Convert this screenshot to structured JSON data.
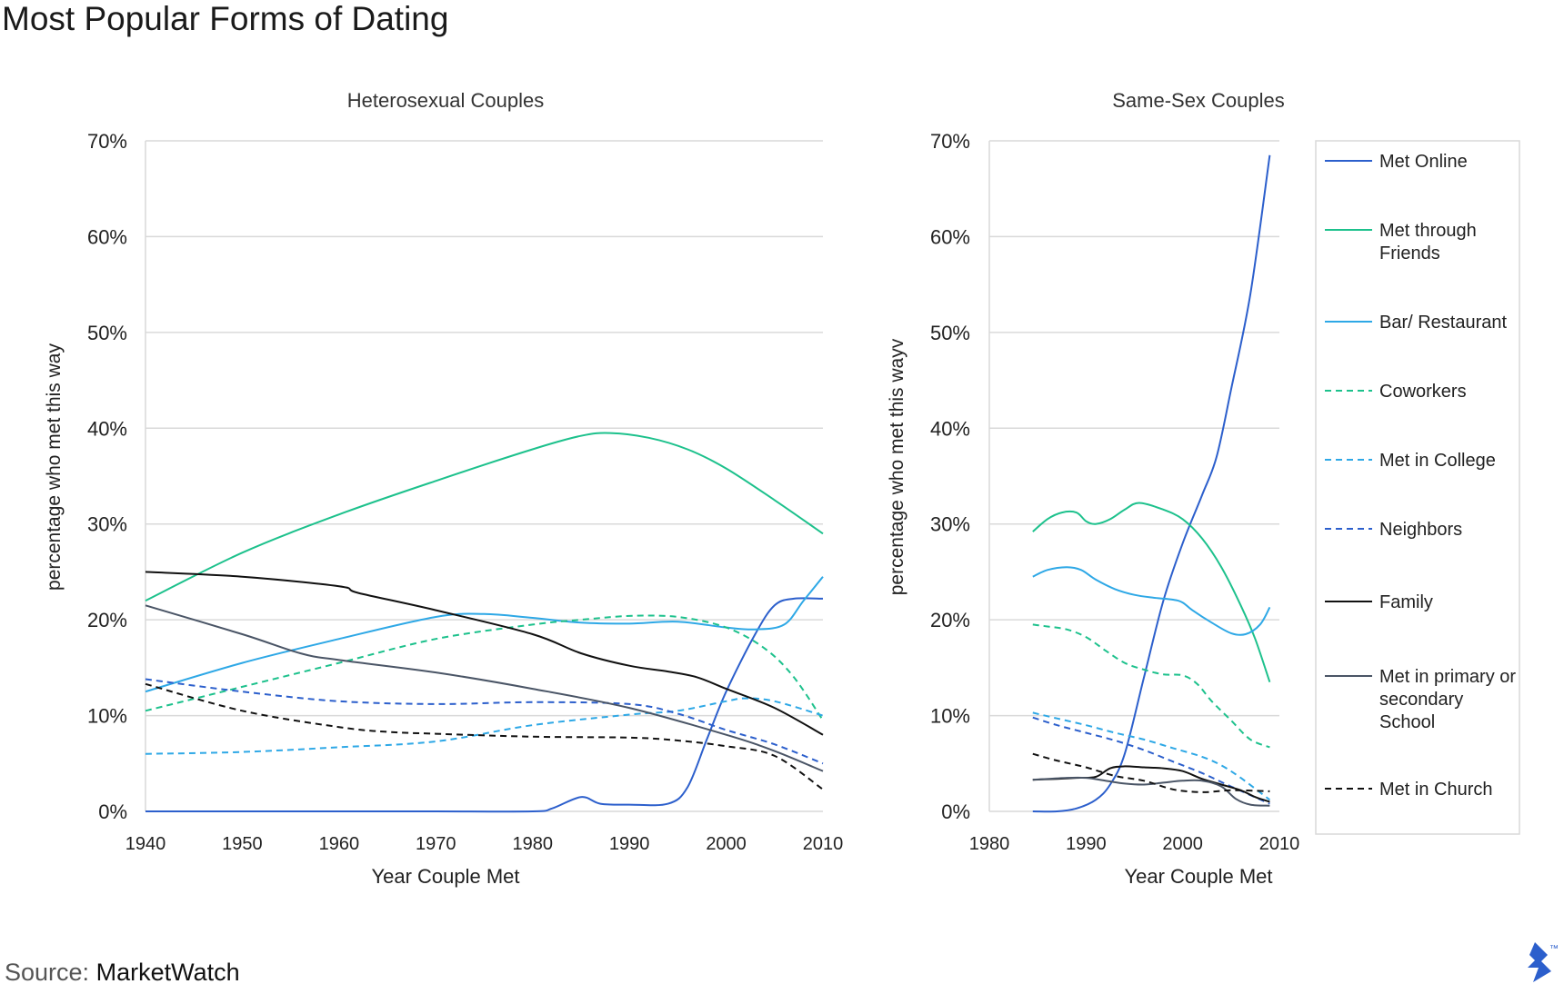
{
  "page": {
    "title": "Most Popular Forms of Dating",
    "source_label": "Source:",
    "source_name": "MarketWatch",
    "logo_icon": "toptal-logo-icon",
    "trademark": "™"
  },
  "colors": {
    "Met Online": "#2c5fcc",
    "Met through Friends": "#1dc18c",
    "Bar/ Restaurant": "#2ea8e6",
    "Coworkers": "#1dc18c",
    "Met in College": "#2ea8e6",
    "Neighbors": "#2c5fcc",
    "Family": "#111111",
    "Met in primary or secondary School": "#4a5566",
    "Met in Church": "#111111"
  },
  "legend": [
    {
      "name": "Met Online",
      "label_lines": [
        "Met Online"
      ],
      "dashed": false
    },
    {
      "name": "Met through Friends",
      "label_lines": [
        "Met through",
        "Friends"
      ],
      "dashed": false
    },
    {
      "name": "Bar/ Restaurant",
      "label_lines": [
        "Bar/ Restaurant"
      ],
      "dashed": false
    },
    {
      "name": "Coworkers",
      "label_lines": [
        "Coworkers"
      ],
      "dashed": true
    },
    {
      "name": "Met in College",
      "label_lines": [
        "Met in College"
      ],
      "dashed": true
    },
    {
      "name": "Neighbors",
      "label_lines": [
        "Neighbors"
      ],
      "dashed": true
    },
    {
      "name": "Family",
      "label_lines": [
        "Family"
      ],
      "dashed": false
    },
    {
      "name": "Met in primary or secondary School",
      "label_lines": [
        "Met in primary or",
        "secondary",
        "School"
      ],
      "dashed": false
    },
    {
      "name": "Met in Church",
      "label_lines": [
        "Met in Church"
      ],
      "dashed": true
    }
  ],
  "chart_data": [
    {
      "type": "line",
      "title": "Heterosexual Couples",
      "xlabel": "Year Couple Met",
      "ylabel": "percentage who met this way",
      "xlim": [
        1940,
        2010
      ],
      "ylim": [
        0,
        70
      ],
      "x_ticks": [
        "1940",
        "1950",
        "1960",
        "1970",
        "1980",
        "1990",
        "2000",
        "2010"
      ],
      "y_ticks": [
        "0%",
        "10%",
        "20%",
        "30%",
        "40%",
        "50%",
        "60%",
        "70%"
      ],
      "grid": true,
      "series": [
        {
          "name": "Met Online",
          "dashed": false,
          "x": [
            1940,
            1950,
            1960,
            1970,
            1980,
            1982,
            1985,
            1987,
            1990,
            1994,
            1996,
            1998,
            2000,
            2003,
            2005,
            2007,
            2010
          ],
          "y": [
            0,
            0,
            0,
            0,
            0,
            0.3,
            1.5,
            0.8,
            0.7,
            0.8,
            2.5,
            7.5,
            12.5,
            18.5,
            21.5,
            22.2,
            22.2
          ]
        },
        {
          "name": "Met through Friends",
          "dashed": false,
          "x": [
            1940,
            1950,
            1960,
            1970,
            1980,
            1985,
            1988,
            1992,
            1996,
            2000,
            2005,
            2010
          ],
          "y": [
            22,
            27,
            31,
            34.5,
            37.8,
            39.2,
            39.5,
            39,
            37.8,
            35.8,
            32.5,
            29
          ]
        },
        {
          "name": "Bar/ Restaurant",
          "dashed": false,
          "x": [
            1940,
            1950,
            1960,
            1970,
            1975,
            1980,
            1985,
            1990,
            1995,
            2000,
            2003,
            2006,
            2008,
            2010
          ],
          "y": [
            12.5,
            15.5,
            18,
            20.3,
            20.6,
            20.2,
            19.7,
            19.6,
            19.8,
            19.2,
            19,
            19.5,
            22,
            24.5
          ]
        },
        {
          "name": "Coworkers",
          "dashed": true,
          "x": [
            1940,
            1950,
            1960,
            1970,
            1980,
            1985,
            1990,
            1995,
            2000,
            2004,
            2007,
            2010
          ],
          "y": [
            10.5,
            13,
            15.5,
            18,
            19.5,
            20,
            20.4,
            20.3,
            19.2,
            17,
            14,
            9.5
          ]
        },
        {
          "name": "Met in College",
          "dashed": true,
          "x": [
            1940,
            1950,
            1960,
            1970,
            1980,
            1990,
            1995,
            2000,
            2002,
            2005,
            2010
          ],
          "y": [
            6,
            6.2,
            6.7,
            7.3,
            9,
            10.1,
            10.5,
            11.5,
            11.8,
            11.5,
            10
          ]
        },
        {
          "name": "Neighbors",
          "dashed": true,
          "x": [
            1940,
            1950,
            1960,
            1970,
            1980,
            1990,
            1995,
            2000,
            2005,
            2010
          ],
          "y": [
            13.8,
            12.5,
            11.5,
            11.2,
            11.4,
            11.2,
            10.2,
            8.5,
            7,
            5
          ]
        },
        {
          "name": "Family",
          "dashed": false,
          "x": [
            1940,
            1950,
            1960,
            1962,
            1970,
            1980,
            1985,
            1990,
            1994,
            1997,
            2000,
            2005,
            2010
          ],
          "y": [
            25,
            24.5,
            23.5,
            22.8,
            21,
            18.5,
            16.5,
            15.2,
            14.6,
            14,
            12.8,
            10.8,
            8
          ]
        },
        {
          "name": "Met in primary or secondary School",
          "dashed": false,
          "x": [
            1940,
            1950,
            1956,
            1960,
            1970,
            1980,
            1990,
            2000,
            2005,
            2010
          ],
          "y": [
            21.5,
            18.5,
            16.5,
            15.8,
            14.5,
            12.8,
            10.8,
            8,
            6.3,
            4.2
          ]
        },
        {
          "name": "Met in Church",
          "dashed": true,
          "x": [
            1940,
            1950,
            1960,
            1965,
            1970,
            1980,
            1990,
            1995,
            2000,
            2005,
            2010
          ],
          "y": [
            13.3,
            10.5,
            8.8,
            8.3,
            8.1,
            7.8,
            7.7,
            7.4,
            6.8,
            5.8,
            2.3
          ]
        }
      ]
    },
    {
      "type": "line",
      "title": "Same-Sex Couples",
      "xlabel": "Year Couple Met",
      "ylabel": "percentage who met this wayv",
      "xlim": [
        1980,
        2010
      ],
      "ylim": [
        0,
        70
      ],
      "x_ticks": [
        "1980",
        "1990",
        "2000",
        "2010"
      ],
      "y_ticks": [
        "0%",
        "10%",
        "20%",
        "30%",
        "40%",
        "50%",
        "60%",
        "70%"
      ],
      "grid": true,
      "series": [
        {
          "name": "Met Online",
          "dashed": false,
          "x": [
            1984.5,
            1987,
            1989,
            1991,
            1992.5,
            1994,
            1996,
            1998,
            2000,
            2002,
            2003.5,
            2005,
            2007,
            2009
          ],
          "y": [
            0,
            0,
            0.3,
            1.2,
            2.8,
            6,
            14,
            22,
            28,
            33,
            37,
            44,
            54,
            68.5
          ]
        },
        {
          "name": "Met through Friends",
          "dashed": false,
          "x": [
            1984.5,
            1986,
            1987.5,
            1989,
            1990,
            1991,
            1992.5,
            1994,
            1995.5,
            1998,
            2000,
            2002,
            2004,
            2006,
            2007.5,
            2009
          ],
          "y": [
            29.2,
            30.5,
            31.2,
            31.2,
            30.3,
            30,
            30.5,
            31.5,
            32.2,
            31.5,
            30.5,
            28.5,
            25.5,
            21.5,
            18,
            13.5
          ]
        },
        {
          "name": "Bar/ Restaurant",
          "dashed": false,
          "x": [
            1984.5,
            1986,
            1988,
            1989.5,
            1991,
            1993,
            1995,
            1997,
            1999,
            2000,
            2001,
            2003,
            2005,
            2006.5,
            2008,
            2009
          ],
          "y": [
            24.5,
            25.2,
            25.5,
            25.2,
            24.2,
            23.2,
            22.6,
            22.3,
            22.1,
            21.8,
            21,
            19.7,
            18.6,
            18.5,
            19.5,
            21.3
          ]
        },
        {
          "name": "Coworkers",
          "dashed": true,
          "x": [
            1984.5,
            1986,
            1988,
            1990,
            1992,
            1994,
            1996,
            1998,
            2000,
            2001.5,
            2003,
            2005,
            2007,
            2009
          ],
          "y": [
            19.5,
            19.3,
            19,
            18.2,
            16.8,
            15.5,
            14.8,
            14.3,
            14.2,
            13.3,
            11.5,
            9.5,
            7.5,
            6.7
          ]
        },
        {
          "name": "Met in College",
          "dashed": true,
          "x": [
            1984.5,
            1987,
            1990,
            1993,
            1996,
            1999,
            2002,
            2004,
            2006,
            2009
          ],
          "y": [
            10.3,
            9.7,
            9,
            8.2,
            7.5,
            6.6,
            5.7,
            4.8,
            3.5,
            1.2
          ]
        },
        {
          "name": "Neighbors",
          "dashed": true,
          "x": [
            1984.5,
            1987,
            1990,
            1993,
            1996,
            1999,
            2002,
            2005,
            2009
          ],
          "y": [
            9.8,
            9,
            8.2,
            7.4,
            6.4,
            5.2,
            4,
            2.6,
            0.8
          ]
        },
        {
          "name": "Family",
          "dashed": false,
          "x": [
            1984.5,
            1987,
            1989,
            1991,
            1992.5,
            1994,
            1996,
            1998,
            2000,
            2002,
            2004,
            2006,
            2007.5,
            2009
          ],
          "y": [
            3.3,
            3.4,
            3.5,
            3.6,
            4.5,
            4.7,
            4.6,
            4.5,
            4.2,
            3.4,
            2.8,
            2.2,
            1.5,
            1
          ]
        },
        {
          "name": "Met in primary or secondary School",
          "dashed": false,
          "x": [
            1984.5,
            1988,
            1990,
            1992,
            1994,
            1996,
            1998,
            2000,
            2002,
            2004,
            2005.5,
            2007,
            2009
          ],
          "y": [
            3.3,
            3.5,
            3.5,
            3.2,
            2.9,
            2.8,
            3,
            3.2,
            3.2,
            2.6,
            1.3,
            0.7,
            0.6
          ]
        },
        {
          "name": "Met in Church",
          "dashed": true,
          "x": [
            1984.5,
            1987,
            1990,
            1993,
            1996,
            1999,
            2002,
            2005,
            2009
          ],
          "y": [
            6,
            5.3,
            4.6,
            3.7,
            3.2,
            2.3,
            2,
            2.2,
            2.1
          ]
        }
      ]
    }
  ]
}
